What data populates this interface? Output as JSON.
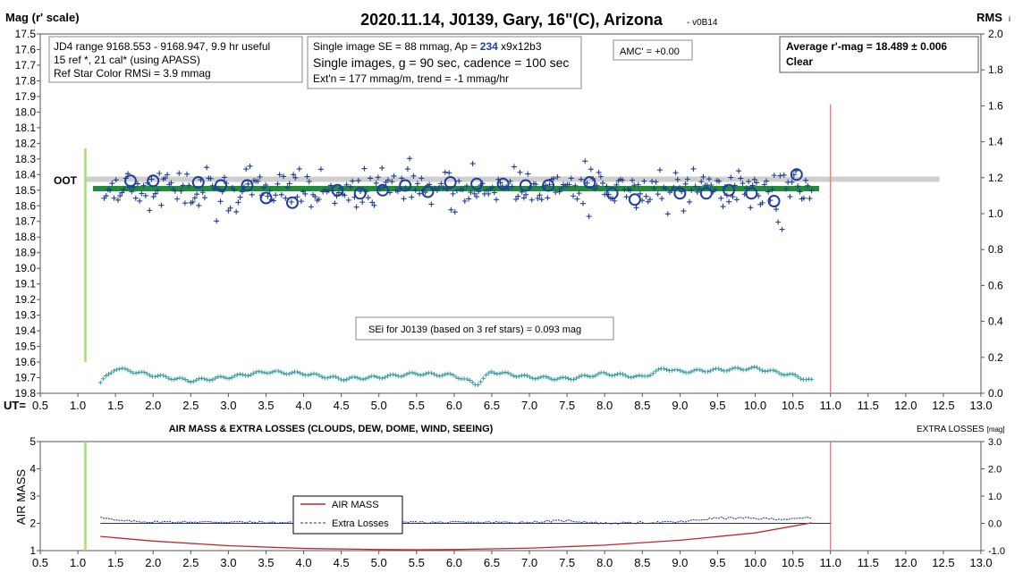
{
  "chart_data": [
    {
      "type": "scatter",
      "title": "2020.11.14, J0139, Gary, 16\"(C), Arizona",
      "version": "- v0B14",
      "ylabel_left": "Mag (r' scale)",
      "ylabel_right": "RMS",
      "ylabel_right_suffix": "i",
      "xlabel": "UT=",
      "xlim": [
        0.5,
        13.0
      ],
      "ylim_left": [
        17.5,
        19.8
      ],
      "ylim_right": [
        0.0,
        2.0
      ],
      "x_ticks": [
        "0.5",
        "1.0",
        "1.5",
        "2.0",
        "2.5",
        "3.0",
        "3.5",
        "4.0",
        "4.5",
        "5.0",
        "5.5",
        "6.0",
        "6.5",
        "7.0",
        "7.5",
        "8.0",
        "8.5",
        "9.0",
        "9.5",
        "10.0",
        "10.5",
        "11.0",
        "11.5",
        "12.0",
        "12.5",
        "13.0"
      ],
      "y_left_ticks": [
        "17.5",
        "17.6",
        "17.7",
        "17.8",
        "17.9",
        "18.0",
        "18.1",
        "18.2",
        "18.3",
        "18.4",
        "18.5",
        "18.6",
        "18.7",
        "18.8",
        "18.9",
        "19.0",
        "19.1",
        "19.2",
        "19.3",
        "19.4",
        "19.5",
        "19.6",
        "19.7",
        "19.8"
      ],
      "y_right_ticks": [
        "2.0",
        "1.8",
        "1.6",
        "1.4",
        "1.2",
        "1.0",
        "0.8",
        "0.6",
        "0.4",
        "0.2",
        "0.0"
      ],
      "oot_label": "OOT",
      "oot_level": 18.43,
      "fit_level": 18.49,
      "ingress_marker": 1.1,
      "egress_marker": 11.0,
      "info_box_1": [
        "JD4 range 9168.553 - 9168.947, 9.9 hr useful",
        "15 ref *, 21 cal* (using APASS)",
        "Ref Star Color RMSi = 3.9 mmag"
      ],
      "info_box_2": {
        "line1_prefix": "Single image SE = 88 mmag, Ap = ",
        "line1_ap": "234",
        "line1_suffix": " x9x12b3",
        "line2": "Single images, g = 90 sec, cadence = 100 sec",
        "line3": "Ext'n = 177 mmag/m, trend = -1 mmag/hr"
      },
      "amc_label": "AMC' = +0.00",
      "average_box": [
        "Average r'-mag =  18.489 ± 0.006",
        "Clear"
      ],
      "sei_label": "SEi for J0139 (based on 3 ref stars) = 0.093 mag",
      "binned_series": {
        "name": "binned",
        "x": [
          1.7,
          2.0,
          2.6,
          2.9,
          3.25,
          3.5,
          3.85,
          4.45,
          4.75,
          5.05,
          5.35,
          5.65,
          5.95,
          6.3,
          6.65,
          6.95,
          7.25,
          7.8,
          8.1,
          8.4,
          9.0,
          9.35,
          9.65,
          9.95,
          10.25,
          10.55
        ],
        "y": [
          18.44,
          18.44,
          18.45,
          18.47,
          18.47,
          18.55,
          18.58,
          18.5,
          18.52,
          18.5,
          18.47,
          18.51,
          18.45,
          18.46,
          18.46,
          18.47,
          18.47,
          18.45,
          18.52,
          18.56,
          18.52,
          18.52,
          18.5,
          18.52,
          18.57,
          18.4
        ]
      },
      "rms_series": {
        "name": "RMS",
        "x": [
          1.3,
          1.5,
          2.0,
          2.5,
          3.0,
          3.5,
          4.0,
          4.5,
          5.0,
          5.5,
          6.0,
          6.3,
          6.5,
          7.0,
          7.5,
          8.0,
          8.5,
          8.8,
          9.0,
          9.5,
          10.0,
          10.5,
          10.75
        ],
        "y": [
          0.06,
          0.14,
          0.1,
          0.07,
          0.09,
          0.12,
          0.11,
          0.08,
          0.09,
          0.11,
          0.1,
          0.05,
          0.12,
          0.09,
          0.08,
          0.11,
          0.09,
          0.14,
          0.12,
          0.13,
          0.14,
          0.1,
          0.07
        ]
      }
    },
    {
      "type": "line",
      "title": "AIR MASS & EXTRA LOSSES (CLOUDS, DEW, DOME, WIND, SEEING)",
      "ylabel_left": "AIR MASS",
      "ylabel_right": "EXTRA LOSSES",
      "ylabel_right_unit": "[mag]",
      "xlim": [
        0.5,
        13.0
      ],
      "ylim_left": [
        1,
        5
      ],
      "ylim_right": [
        3.0,
        -1.0
      ],
      "x_ticks": [
        "0.5",
        "1.0",
        "1.5",
        "2.0",
        "2.5",
        "3.0",
        "3.5",
        "4.0",
        "4.5",
        "5.0",
        "5.5",
        "6.0",
        "6.5",
        "7.0",
        "7.5",
        "8.0",
        "8.5",
        "9.0",
        "9.5",
        "10.0",
        "10.5",
        "11.0",
        "11.5",
        "12.0",
        "12.5",
        "13.0"
      ],
      "y_left_ticks": [
        "5",
        "4",
        "3",
        "2",
        "1"
      ],
      "y_right_ticks": [
        "-1.0",
        "0.0",
        "1.0",
        "2.0",
        "3.0"
      ],
      "legend": [
        "AIR MASS",
        "Extra Losses"
      ],
      "air_mass": {
        "name": "AIR MASS",
        "x": [
          1.3,
          2.0,
          3.0,
          4.0,
          5.0,
          5.5,
          6.0,
          7.0,
          8.0,
          9.0,
          10.0,
          10.75
        ],
        "y": [
          1.52,
          1.35,
          1.18,
          1.08,
          1.04,
          1.03,
          1.04,
          1.09,
          1.2,
          1.38,
          1.65,
          2.02
        ]
      },
      "extra_losses": {
        "name": "Extra Losses",
        "x": [
          1.3,
          1.5,
          2.0,
          3.0,
          4.0,
          5.0,
          6.0,
          7.0,
          7.5,
          8.0,
          9.0,
          9.5,
          10.0,
          10.5,
          10.75
        ],
        "y": [
          0.25,
          0.1,
          0.05,
          0.05,
          0.02,
          0.05,
          0.03,
          0.04,
          0.1,
          0.0,
          0.05,
          0.2,
          0.18,
          0.15,
          0.22
        ]
      }
    }
  ]
}
